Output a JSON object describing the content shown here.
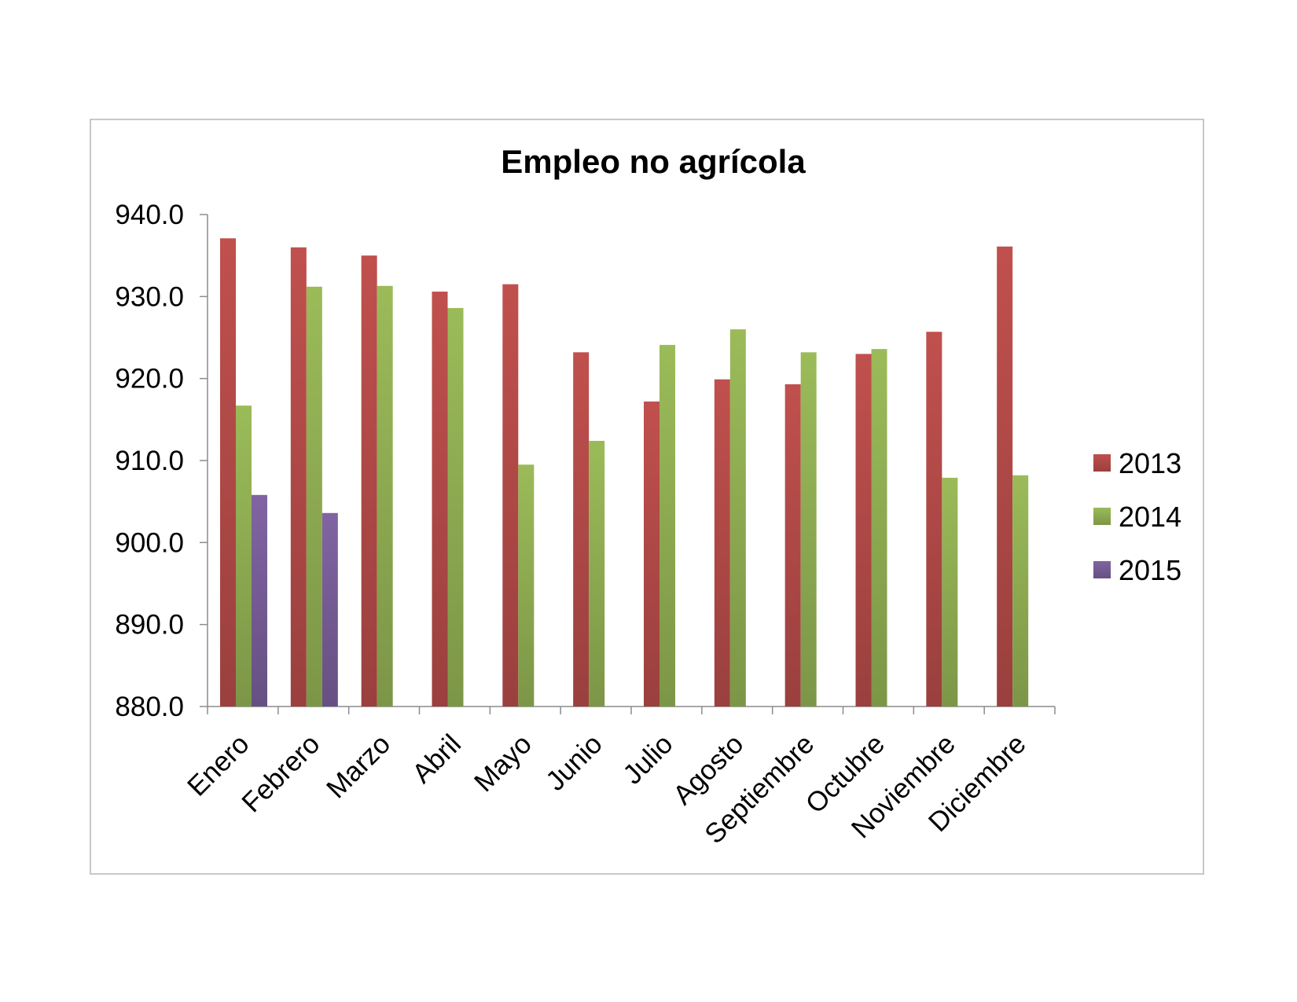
{
  "chart_data": {
    "type": "bar",
    "title": "Empleo no agrícola",
    "xlabel": "",
    "ylabel": "",
    "ylim": [
      880.0,
      940.0
    ],
    "yticks": [
      "940.0",
      "930.0",
      "920.0",
      "910.0",
      "900.0",
      "890.0",
      "880.0"
    ],
    "categories": [
      "Enero",
      "Febrero",
      "Marzo",
      "Abril",
      "Mayo",
      "Junio",
      "Julio",
      "Agosto",
      "Septiembre",
      "Octubre",
      "Noviembre",
      "Diciembre"
    ],
    "series": [
      {
        "name": "2013",
        "color": "#c0504d",
        "values": [
          937.1,
          936.0,
          935.0,
          930.6,
          931.5,
          923.2,
          917.2,
          919.9,
          919.3,
          923.0,
          925.7,
          936.1
        ]
      },
      {
        "name": "2014",
        "color": "#9bbb59",
        "values": [
          916.7,
          931.2,
          931.3,
          928.6,
          909.5,
          912.4,
          924.1,
          926.0,
          923.2,
          923.6,
          907.9,
          908.2
        ]
      },
      {
        "name": "2015",
        "color": "#8064a2",
        "values": [
          905.8,
          903.6,
          null,
          null,
          null,
          null,
          null,
          null,
          null,
          null,
          null,
          null
        ]
      }
    ],
    "legend_position": "right",
    "grid": false
  }
}
